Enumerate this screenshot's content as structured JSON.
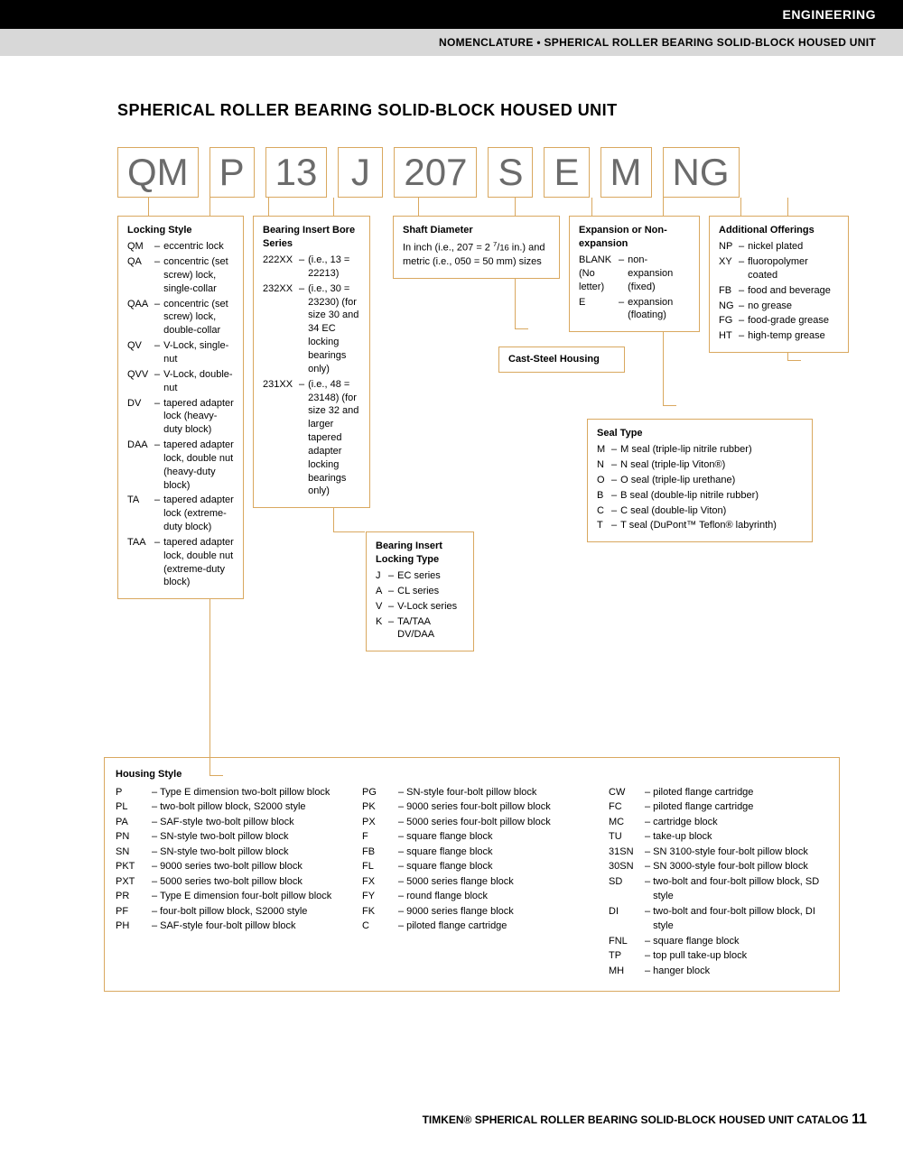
{
  "header": {
    "category": "ENGINEERING",
    "subtitle": "NOMENCLATURE • SPHERICAL ROLLER BEARING SOLID-BLOCK HOUSED UNIT"
  },
  "title": "SPHERICAL ROLLER BEARING SOLID-BLOCK HOUSED UNIT",
  "code_parts": [
    "QM",
    "P",
    "13",
    "J",
    "207",
    "S",
    "E",
    "M",
    "NG"
  ],
  "locking_style": {
    "title": "Locking Style",
    "items": [
      {
        "code": "QM",
        "text": "eccentric lock"
      },
      {
        "code": "QA",
        "text": "concentric (set screw) lock, single-collar"
      },
      {
        "code": "QAA",
        "text": "concentric (set screw) lock, double-collar"
      },
      {
        "code": "QV",
        "text": "V-Lock, single-nut"
      },
      {
        "code": "QVV",
        "text": "V-Lock, double-nut"
      },
      {
        "code": "DV",
        "text": "tapered adapter lock (heavy-duty block)"
      },
      {
        "code": "DAA",
        "text": "tapered adapter lock, double nut (heavy-duty block)"
      },
      {
        "code": "TA",
        "text": "tapered adapter lock (extreme-duty block)"
      },
      {
        "code": "TAA",
        "text": "tapered adapter lock, double nut (extreme-duty block)"
      }
    ]
  },
  "bearing_insert_bore": {
    "title": "Bearing Insert Bore Series",
    "items": [
      {
        "code": "222XX",
        "text": "(i.e., 13 = 22213)"
      },
      {
        "code": "232XX",
        "text": "(i.e., 30 = 23230) (for size 30 and 34 EC locking bearings only)"
      },
      {
        "code": "231XX",
        "text": "(i.e., 48 = 23148) (for size 32 and larger tapered adapter locking bearings only)"
      }
    ]
  },
  "bearing_insert_locking": {
    "title": "Bearing Insert Locking Type",
    "items": [
      {
        "code": "J",
        "text": "EC series"
      },
      {
        "code": "A",
        "text": "CL series"
      },
      {
        "code": "V",
        "text": "V-Lock series"
      },
      {
        "code": "K",
        "text": "TA/TAA DV/DAA"
      }
    ]
  },
  "shaft_diameter": {
    "title": "Shaft Diameter",
    "text": "In inch (i.e., 207 = 2 7/16 in.) and metric (i.e., 050 = 50 mm) sizes"
  },
  "cast_steel": {
    "title": "Cast-Steel Housing"
  },
  "expansion": {
    "title": "Expansion or Non-expansion",
    "items": [
      {
        "code": "BLANK (No letter)",
        "text": "non-expansion (fixed)"
      },
      {
        "code": "E",
        "text": "expansion (floating)"
      }
    ]
  },
  "seal_type": {
    "title": "Seal Type",
    "items": [
      {
        "code": "M",
        "text": "M seal (triple-lip nitrile rubber)"
      },
      {
        "code": "N",
        "text": "N seal (triple-lip Viton®)"
      },
      {
        "code": "O",
        "text": "O seal (triple-lip urethane)"
      },
      {
        "code": "B",
        "text": "B seal (double-lip nitrile rubber)"
      },
      {
        "code": "C",
        "text": "C seal (double-lip Viton)"
      },
      {
        "code": "T",
        "text": "T seal (DuPont™ Teflon® labyrinth)"
      }
    ]
  },
  "additional": {
    "title": "Additional Offerings",
    "items": [
      {
        "code": "NP",
        "text": "nickel plated"
      },
      {
        "code": "XY",
        "text": "fluoropolymer coated"
      },
      {
        "code": "FB",
        "text": "food and beverage"
      },
      {
        "code": "NG",
        "text": "no grease"
      },
      {
        "code": "FG",
        "text": "food-grade grease"
      },
      {
        "code": "HT",
        "text": "high-temp grease"
      }
    ]
  },
  "housing_style": {
    "title": "Housing Style",
    "col1": [
      {
        "code": "P",
        "text": "Type E dimension two-bolt pillow block"
      },
      {
        "code": "PL",
        "text": "two-bolt pillow block, S2000 style"
      },
      {
        "code": "PA",
        "text": "SAF-style two-bolt pillow block"
      },
      {
        "code": "PN",
        "text": "SN-style two-bolt pillow block"
      },
      {
        "code": "SN",
        "text": "SN-style two-bolt pillow block"
      },
      {
        "code": "PKT",
        "text": "9000 series two-bolt pillow block"
      },
      {
        "code": "PXT",
        "text": "5000 series two-bolt pillow block"
      },
      {
        "code": "PR",
        "text": "Type E dimension four-bolt pillow block"
      },
      {
        "code": "PF",
        "text": "four-bolt pillow block, S2000 style"
      },
      {
        "code": "PH",
        "text": "SAF-style four-bolt pillow block"
      }
    ],
    "col2": [
      {
        "code": "PG",
        "text": "SN-style four-bolt pillow block"
      },
      {
        "code": "PK",
        "text": "9000 series four-bolt pillow block"
      },
      {
        "code": "PX",
        "text": "5000 series four-bolt pillow block"
      },
      {
        "code": "F",
        "text": "square flange block"
      },
      {
        "code": "FB",
        "text": "square flange block"
      },
      {
        "code": "FL",
        "text": "square flange block"
      },
      {
        "code": "FX",
        "text": "5000 series flange block"
      },
      {
        "code": "FY",
        "text": "round flange block"
      },
      {
        "code": "FK",
        "text": "9000 series flange block"
      },
      {
        "code": "C",
        "text": "piloted flange cartridge"
      }
    ],
    "col3": [
      {
        "code": "CW",
        "text": "piloted flange cartridge"
      },
      {
        "code": "FC",
        "text": "piloted flange cartridge"
      },
      {
        "code": "MC",
        "text": "cartridge block"
      },
      {
        "code": "TU",
        "text": "take-up block"
      },
      {
        "code": "31SN",
        "text": "SN 3100-style four-bolt pillow block"
      },
      {
        "code": "30SN",
        "text": "SN 3000-style four-bolt pillow block"
      },
      {
        "code": "SD",
        "text": "two-bolt and four-bolt pillow block, SD style"
      },
      {
        "code": "DI",
        "text": "two-bolt and four-bolt pillow block, DI style"
      },
      {
        "code": "FNL",
        "text": "square flange block"
      },
      {
        "code": "TP",
        "text": "top pull take-up block"
      },
      {
        "code": "MH",
        "text": "hanger block"
      }
    ]
  },
  "footer": {
    "text": "TIMKEN® SPHERICAL ROLLER BEARING SOLID-BLOCK HOUSED UNIT CATALOG",
    "page": "11"
  },
  "colors": {
    "border": "#d9a85f",
    "code_text": "#6b6b6b",
    "black": "#000000",
    "gray_bar": "#d8d8d8"
  }
}
